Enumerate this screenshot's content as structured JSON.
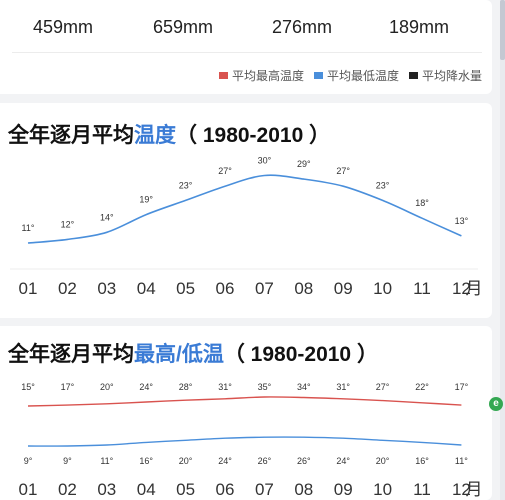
{
  "precipitation": {
    "values": [
      "459mm",
      "659mm",
      "276mm",
      "189mm"
    ]
  },
  "legend": {
    "items": [
      {
        "label": "平均最高温度",
        "color": "#d9534f"
      },
      {
        "label": "平均最低温度",
        "color": "#4a8fdb"
      },
      {
        "label": "平均降水量",
        "color": "#222222"
      }
    ]
  },
  "temp_section": {
    "title_prefix": "全年逐月平均",
    "title_highlight": "温度",
    "title_suffix": "（ 1980-2010 ）"
  },
  "highlow_section": {
    "title_prefix": "全年逐月平均",
    "title_highlight": "最高/低温",
    "title_suffix": "（ 1980-2010 ）"
  },
  "month_unit": "月",
  "chart_data": [
    {
      "type": "line",
      "title": "全年逐月平均温度（ 1980-2010 ）",
      "categories": [
        "01",
        "02",
        "03",
        "04",
        "05",
        "06",
        "07",
        "08",
        "09",
        "10",
        "11",
        "12"
      ],
      "series": [
        {
          "values": [
            11,
            12,
            14,
            19,
            23,
            27,
            30,
            29,
            27,
            23,
            18,
            13
          ],
          "color": "#4a8fdb"
        }
      ],
      "data_labels": [
        "11°",
        "12°",
        "14°",
        "19°",
        "23°",
        "27°",
        "30°",
        "29°",
        "27°",
        "23°",
        "18°",
        "13°"
      ]
    },
    {
      "type": "line",
      "title": "全年逐月平均最高/低温（ 1980-2010 ）",
      "categories": [
        "01",
        "02",
        "03",
        "04",
        "05",
        "06",
        "07",
        "08",
        "09",
        "10",
        "11",
        "12"
      ],
      "series": [
        {
          "name": "平均最高温度",
          "values": [
            15,
            17,
            20,
            24,
            28,
            31,
            35,
            34,
            31,
            27,
            22,
            17
          ],
          "color": "#d9534f"
        },
        {
          "name": "平均最低温度",
          "values": [
            9,
            9,
            11,
            16,
            20,
            24,
            26,
            26,
            24,
            20,
            16,
            11
          ],
          "color": "#4a8fdb"
        }
      ],
      "high_labels": [
        "15°",
        "17°",
        "20°",
        "24°",
        "28°",
        "31°",
        "35°",
        "34°",
        "31°",
        "27°",
        "22°",
        "17°"
      ],
      "low_labels": [
        "9°",
        "9°",
        "11°",
        "16°",
        "20°",
        "24°",
        "26°",
        "26°",
        "24°",
        "20°",
        "16°",
        "11°"
      ]
    }
  ],
  "float_icon": {
    "glyph": "e"
  }
}
